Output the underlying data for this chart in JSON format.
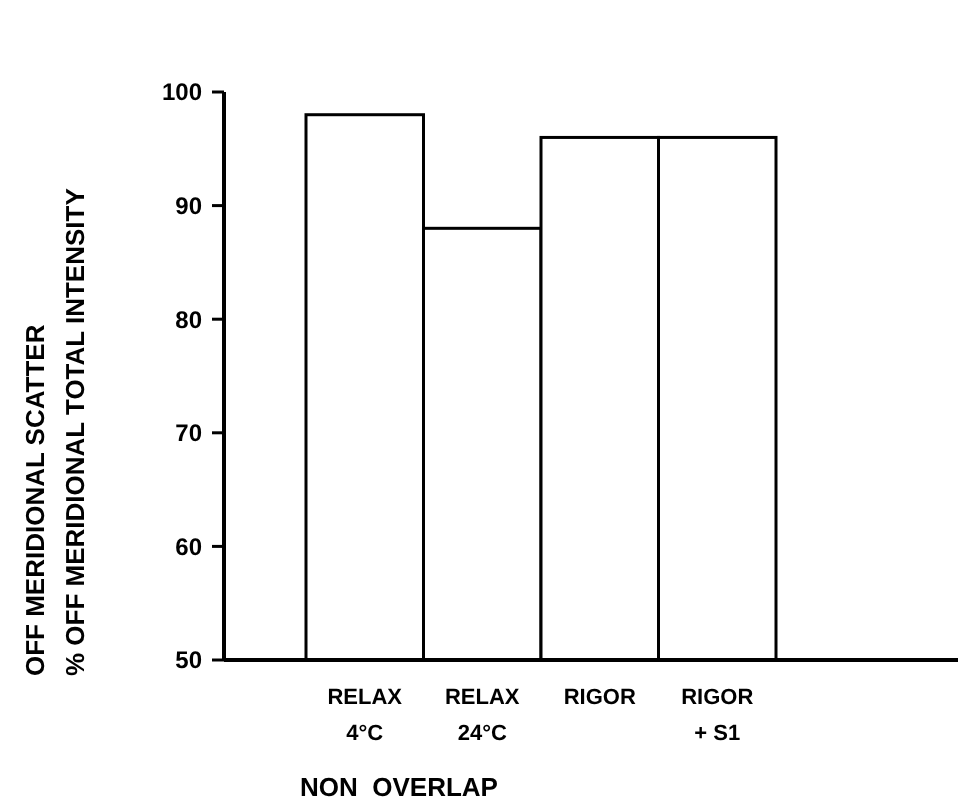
{
  "chart_data": {
    "type": "bar",
    "categories": [
      "RELAX\n4°C",
      "RELAX\n24°C",
      "RIGOR",
      "RIGOR\n+ S1"
    ],
    "values": [
      98,
      88,
      96,
      96
    ],
    "color": "#ffffff",
    "ylabel": "OFF MERIDIONAL SCATTER\n% OFF MERIDIONAL TOTAL INTENSITY",
    "xlabel": "NON  OVERLAP",
    "ylim": [
      50,
      100
    ],
    "yticks": [
      50,
      60,
      70,
      80,
      90,
      100
    ],
    "grid": false
  }
}
